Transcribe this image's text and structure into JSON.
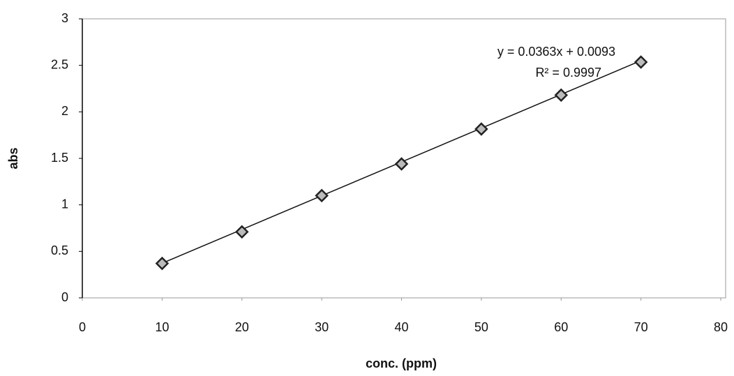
{
  "chart_data": {
    "type": "scatter",
    "x_label": "conc. (ppm)",
    "y_label": "abs",
    "x": [
      10,
      20,
      30,
      40,
      50,
      60,
      70
    ],
    "values": [
      0.37,
      0.71,
      1.1,
      1.44,
      1.815,
      2.18,
      2.535
    ],
    "color": "#222222",
    "xlim": [
      0,
      80
    ],
    "xticks": [
      0,
      10,
      20,
      30,
      40,
      50,
      60,
      70,
      80
    ],
    "ylim": [
      0,
      3
    ],
    "yticks": [
      0,
      0.5,
      1,
      1.5,
      2,
      2.5,
      3
    ],
    "grid": false,
    "trendline": {
      "slope": 0.0363,
      "intercept": 0.0093,
      "label": "y = 0.0363x + 0.0093",
      "r2_label": "R² = 0.9997"
    }
  }
}
